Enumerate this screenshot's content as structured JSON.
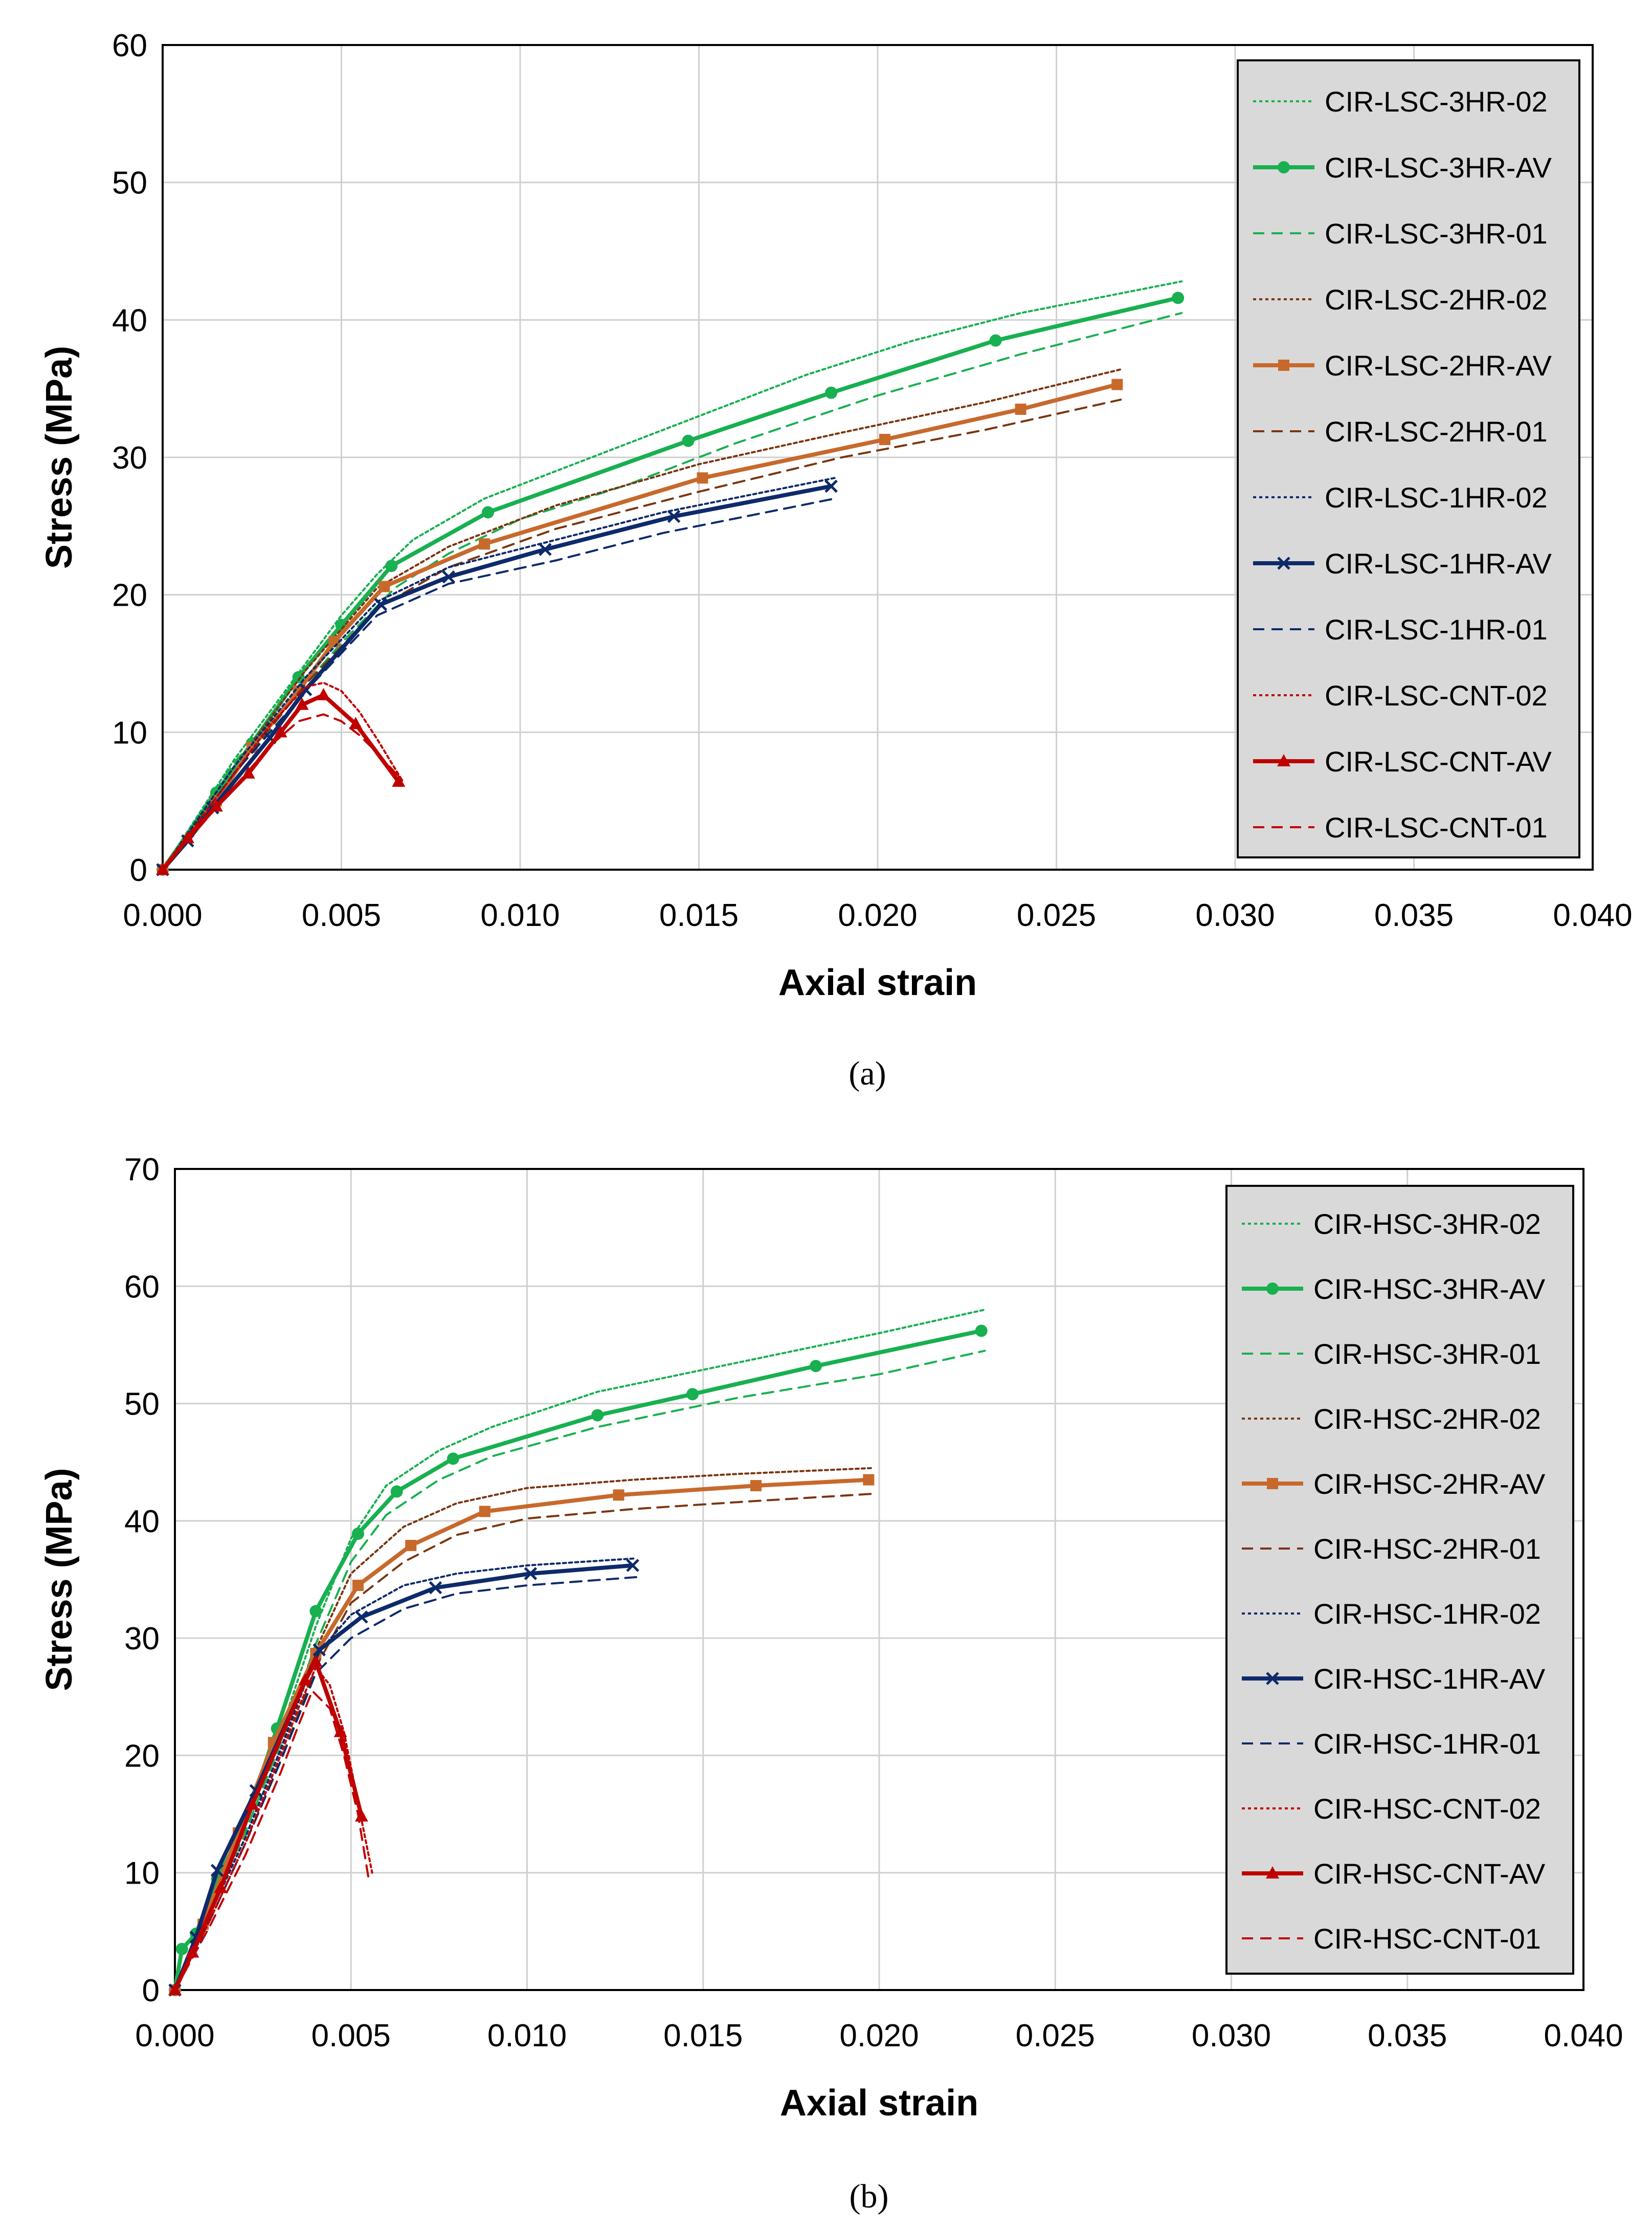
{
  "colors": {
    "green": "#18b050",
    "orange": "#c8692c",
    "brown": "#7a3510",
    "navy": "#0d2a6a",
    "red": "#c00000"
  },
  "chart_data": [
    {
      "type": "line",
      "caption": "(a)",
      "xlabel": "Axial strain",
      "ylabel": "Stress (MPa)",
      "xlim": [
        0,
        0.04
      ],
      "ylim": [
        0,
        60
      ],
      "xticks": [
        "0.000",
        "0.005",
        "0.010",
        "0.015",
        "0.020",
        "0.025",
        "0.030",
        "0.035",
        "0.040"
      ],
      "yticks": [
        "0",
        "10",
        "20",
        "30",
        "40",
        "50",
        "60"
      ],
      "legend_position": "right",
      "series": [
        {
          "name": "CIR-LSC-3HR-02",
          "style": "dotted",
          "color": "green",
          "x": [
            0,
            0.002,
            0.004,
            0.005,
            0.006,
            0.007,
            0.009,
            0.012,
            0.015,
            0.018,
            0.021,
            0.024,
            0.0285
          ],
          "y": [
            0,
            8,
            15,
            18.5,
            21.5,
            24,
            27,
            30,
            33,
            36,
            38.5,
            40.5,
            42.8
          ]
        },
        {
          "name": "CIR-LSC-3HR-AV",
          "style": "solid",
          "color": "green",
          "marker": "circle",
          "x": [
            0,
            0.0015,
            0.0025,
            0.0038,
            0.005,
            0.0064,
            0.0091,
            0.0147,
            0.0187,
            0.0233,
            0.0284
          ],
          "y": [
            0,
            5.6,
            9.2,
            14,
            17.8,
            22.1,
            26,
            31.2,
            34.7,
            38.5,
            41.6
          ]
        },
        {
          "name": "CIR-LSC-3HR-01",
          "style": "dashed",
          "color": "green",
          "x": [
            0,
            0.002,
            0.004,
            0.005,
            0.0065,
            0.008,
            0.01,
            0.013,
            0.016,
            0.02,
            0.024,
            0.0285
          ],
          "y": [
            0,
            7.8,
            13.5,
            16.5,
            20.5,
            23,
            25.5,
            28,
            31,
            34.5,
            37.5,
            40.5
          ]
        },
        {
          "name": "CIR-LSC-2HR-02",
          "style": "dotted",
          "color": "brown",
          "x": [
            0,
            0.002,
            0.004,
            0.006,
            0.008,
            0.011,
            0.015,
            0.019,
            0.023,
            0.0268
          ],
          "y": [
            0,
            7.5,
            14.5,
            20.5,
            23.5,
            26.5,
            29.5,
            31.8,
            34,
            36.4
          ]
        },
        {
          "name": "CIR-LSC-2HR-AV",
          "style": "solid",
          "color": "orange",
          "marker": "square",
          "x": [
            0,
            0.0015,
            0.0025,
            0.0038,
            0.0048,
            0.0062,
            0.009,
            0.0151,
            0.0202,
            0.024,
            0.0267
          ],
          "y": [
            0,
            5,
            8.9,
            13,
            16.6,
            20.6,
            23.7,
            28.5,
            31.3,
            33.5,
            35.3
          ]
        },
        {
          "name": "CIR-LSC-2HR-01",
          "style": "dashed",
          "color": "brown",
          "x": [
            0,
            0.002,
            0.004,
            0.006,
            0.008,
            0.011,
            0.015,
            0.019,
            0.023,
            0.0268
          ],
          "y": [
            0,
            7,
            13.5,
            19,
            22,
            24.8,
            27.5,
            30,
            32,
            34.2
          ]
        },
        {
          "name": "CIR-LSC-1HR-02",
          "style": "dotted",
          "color": "navy",
          "x": [
            0,
            0.002,
            0.004,
            0.006,
            0.008,
            0.011,
            0.014,
            0.0188
          ],
          "y": [
            0,
            7.5,
            14,
            19.5,
            22,
            24,
            26,
            28.5
          ]
        },
        {
          "name": "CIR-LSC-1HR-AV",
          "style": "solid",
          "color": "navy",
          "marker": "x",
          "x": [
            0,
            0.0007,
            0.0014,
            0.003,
            0.004,
            0.0061,
            0.008,
            0.0107,
            0.0143,
            0.0187
          ],
          "y": [
            0,
            2.1,
            4.5,
            9.6,
            13.1,
            19.3,
            21.3,
            23.3,
            25.7,
            27.9
          ]
        },
        {
          "name": "CIR-LSC-1HR-01",
          "style": "dashed",
          "color": "navy",
          "x": [
            0,
            0.002,
            0.004,
            0.006,
            0.008,
            0.011,
            0.014,
            0.0188
          ],
          "y": [
            0,
            7,
            13,
            18.5,
            20.8,
            22.5,
            24.5,
            27
          ]
        },
        {
          "name": "CIR-LSC-CNT-02",
          "style": "dotted",
          "color": "red",
          "x": [
            0,
            0.001,
            0.002,
            0.003,
            0.004,
            0.0045,
            0.005,
            0.0055,
            0.006,
            0.0067
          ],
          "y": [
            0,
            3.5,
            7,
            10.5,
            13.3,
            13.6,
            13,
            11.5,
            9.5,
            6.5
          ]
        },
        {
          "name": "CIR-LSC-CNT-AV",
          "style": "solid",
          "color": "red",
          "marker": "triangle",
          "x": [
            0,
            0.0007,
            0.0015,
            0.0024,
            0.0033,
            0.0039,
            0.0045,
            0.0054,
            0.0066
          ],
          "y": [
            0,
            2.3,
            4.6,
            7,
            10,
            12,
            12.7,
            10.6,
            6.4
          ]
        },
        {
          "name": "CIR-LSC-CNT-01",
          "style": "dashed",
          "color": "red",
          "x": [
            0,
            0.001,
            0.002,
            0.003,
            0.0038,
            0.0045,
            0.005,
            0.0055,
            0.006,
            0.0067
          ],
          "y": [
            0,
            3,
            6,
            9,
            10.8,
            11.3,
            10.8,
            9.8,
            8.5,
            6.5
          ]
        }
      ]
    },
    {
      "type": "line",
      "caption": "(b)",
      "xlabel": "Axial strain",
      "ylabel": "Stress (MPa)",
      "xlim": [
        0,
        0.04
      ],
      "ylim": [
        0,
        70
      ],
      "xticks": [
        "0.000",
        "0.005",
        "0.010",
        "0.015",
        "0.020",
        "0.025",
        "0.030",
        "0.035",
        "0.040"
      ],
      "yticks": [
        "0",
        "10",
        "20",
        "30",
        "40",
        "50",
        "60",
        "70"
      ],
      "legend_position": "right",
      "series": [
        {
          "name": "CIR-HSC-3HR-02",
          "style": "dotted",
          "color": "green",
          "x": [
            0,
            0.001,
            0.002,
            0.003,
            0.004,
            0.005,
            0.006,
            0.0075,
            0.009,
            0.012,
            0.016,
            0.02,
            0.023
          ],
          "y": [
            0,
            7,
            14,
            22,
            31,
            38.5,
            43,
            46,
            48,
            51,
            53.5,
            56,
            58
          ]
        },
        {
          "name": "CIR-HSC-3HR-AV",
          "style": "solid",
          "color": "green",
          "marker": "circle",
          "x": [
            0,
            0.0002,
            0.0006,
            0.0012,
            0.0019,
            0.0029,
            0.004,
            0.0052,
            0.0063,
            0.0079,
            0.012,
            0.0147,
            0.0182,
            0.0229
          ],
          "y": [
            0,
            3.5,
            4.8,
            9.5,
            13.5,
            22.3,
            32.3,
            38.9,
            42.5,
            45.3,
            49,
            50.8,
            53.2,
            56.2
          ]
        },
        {
          "name": "CIR-HSC-3HR-01",
          "style": "dashed",
          "color": "green",
          "x": [
            0,
            0.001,
            0.002,
            0.003,
            0.004,
            0.005,
            0.006,
            0.0075,
            0.009,
            0.012,
            0.016,
            0.02,
            0.023
          ],
          "y": [
            0,
            6.8,
            13.5,
            21,
            29.5,
            36.5,
            40.5,
            43.5,
            45.5,
            48,
            50.5,
            52.5,
            54.5
          ]
        },
        {
          "name": "CIR-HSC-2HR-02",
          "style": "dotted",
          "color": "brown",
          "x": [
            0,
            0.001,
            0.002,
            0.003,
            0.004,
            0.005,
            0.0065,
            0.008,
            0.01,
            0.013,
            0.016,
            0.0198
          ],
          "y": [
            0,
            6.5,
            13,
            20.5,
            29,
            35.5,
            39.5,
            41.5,
            42.8,
            43.5,
            44,
            44.5
          ]
        },
        {
          "name": "CIR-HSC-2HR-AV",
          "style": "solid",
          "color": "orange",
          "marker": "square",
          "x": [
            0,
            0.0008,
            0.0018,
            0.0028,
            0.004,
            0.0052,
            0.0067,
            0.0088,
            0.0126,
            0.0165,
            0.0197
          ],
          "y": [
            0,
            5.6,
            13.4,
            21.1,
            28.7,
            34.5,
            37.9,
            40.8,
            42.2,
            43,
            43.5
          ]
        },
        {
          "name": "CIR-HSC-2HR-01",
          "style": "dashed",
          "color": "brown",
          "x": [
            0,
            0.001,
            0.002,
            0.003,
            0.004,
            0.005,
            0.0065,
            0.008,
            0.01,
            0.013,
            0.016,
            0.0198
          ],
          "y": [
            0,
            6,
            12.5,
            19.5,
            27.5,
            33,
            36.5,
            38.8,
            40.2,
            41,
            41.6,
            42.3
          ]
        },
        {
          "name": "CIR-HSC-1HR-02",
          "style": "dotted",
          "color": "navy",
          "x": [
            0,
            0.001,
            0.002,
            0.003,
            0.004,
            0.005,
            0.0065,
            0.008,
            0.01,
            0.0131
          ],
          "y": [
            0,
            6.5,
            13,
            20.5,
            28.5,
            32,
            34.5,
            35.5,
            36.2,
            36.8
          ]
        },
        {
          "name": "CIR-HSC-1HR-AV",
          "style": "solid",
          "color": "navy",
          "marker": "x",
          "x": [
            0,
            0.0006,
            0.0012,
            0.0023,
            0.0041,
            0.0053,
            0.0074,
            0.0101,
            0.013
          ],
          "y": [
            0,
            4.5,
            10.2,
            17,
            29,
            31.8,
            34.3,
            35.5,
            36.2
          ]
        },
        {
          "name": "CIR-HSC-1HR-01",
          "style": "dashed",
          "color": "navy",
          "x": [
            0,
            0.001,
            0.002,
            0.003,
            0.004,
            0.005,
            0.0065,
            0.008,
            0.01,
            0.0131
          ],
          "y": [
            0,
            6,
            12.5,
            19.5,
            27,
            30,
            32.5,
            33.8,
            34.5,
            35.2
          ]
        },
        {
          "name": "CIR-HSC-CNT-02",
          "style": "dotted",
          "color": "red",
          "x": [
            0,
            0.001,
            0.002,
            0.003,
            0.0035,
            0.004,
            0.0044,
            0.0048,
            0.0052,
            0.0056
          ],
          "y": [
            0,
            6,
            12.5,
            20,
            24,
            27.5,
            26,
            22,
            16,
            10
          ]
        },
        {
          "name": "CIR-HSC-CNT-AV",
          "style": "solid",
          "color": "red",
          "marker": "triangle",
          "x": [
            0,
            0.0005,
            0.0013,
            0.0022,
            0.0037,
            0.004,
            0.0047,
            0.0053
          ],
          "y": [
            0,
            3.2,
            8.7,
            15.8,
            26.4,
            28,
            22,
            14.8
          ]
        },
        {
          "name": "CIR-HSC-CNT-01",
          "style": "dashed",
          "color": "red",
          "x": [
            0,
            0.001,
            0.002,
            0.003,
            0.0035,
            0.0039,
            0.0044,
            0.0048,
            0.0052,
            0.0055
          ],
          "y": [
            0,
            5.5,
            11.5,
            18.5,
            22.5,
            25.5,
            24,
            20,
            15,
            9.5
          ]
        }
      ]
    }
  ]
}
